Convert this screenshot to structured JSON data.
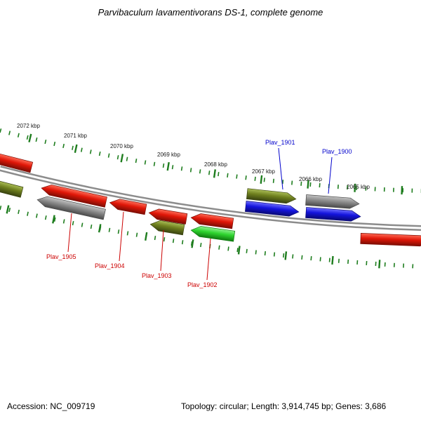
{
  "title": "Parvibaculum lavamentivorans DS-1, complete genome",
  "ruler": {
    "labels": [
      "2072 kbp",
      "2071 kbp",
      "2070 kbp",
      "2069 kbp",
      "2068 kbp",
      "2067 kbp",
      "2066 kbp",
      "2065 kbp"
    ]
  },
  "genes": [
    {
      "label": "Plav_1905",
      "color": "#cc0000"
    },
    {
      "label": "Plav_1904",
      "color": "#cc0000"
    },
    {
      "label": "Plav_1903",
      "color": "#cc0000"
    },
    {
      "label": "Plav_1902",
      "color": "#cc0000"
    },
    {
      "label": "Plav_1901",
      "color": "#0000cc"
    },
    {
      "label": "Plav_1900",
      "color": "#0000cc"
    }
  ],
  "footer": {
    "accession": "Accession: NC_009719",
    "stats": "Topology: circular; Length: 3,914,745 bp; Genes: 3,686"
  },
  "colors": {
    "backbone": "#8c8c8c",
    "ticks": "#1e7d1e",
    "genes": {
      "red": {
        "light": "#ff6a55",
        "base": "#e01708",
        "dark": "#7e0d04"
      },
      "gray": {
        "light": "#c2c2c2",
        "base": "#8a8a8a",
        "dark": "#4a4a4a"
      },
      "olive": {
        "light": "#a9bc55",
        "base": "#6e7f1e",
        "dark": "#394310"
      },
      "blue": {
        "light": "#6b6bff",
        "base": "#1414dd",
        "dark": "#090977"
      },
      "green": {
        "light": "#8df08d",
        "base": "#2fd42f",
        "dark": "#0f7a0f"
      }
    }
  }
}
